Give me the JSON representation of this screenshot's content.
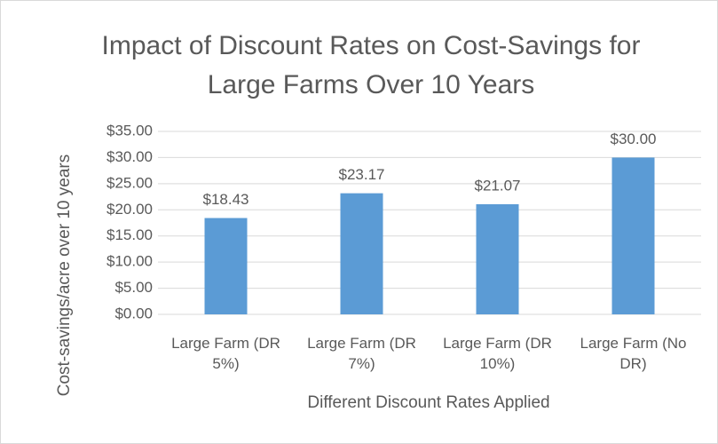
{
  "chart_data": {
    "type": "bar",
    "title": "Impact of Discount Rates on Cost-Savings for Large Farms Over 10 Years",
    "x_label": "Different Discount Rates Applied",
    "y_label": "Cost-savings/acre over 10 years",
    "categories": [
      "Large Farm (DR 5%)",
      "Large Farm (DR 7%)",
      "Large Farm (DR 10%)",
      "Large Farm (No DR)"
    ],
    "values": [
      18.43,
      23.17,
      21.07,
      30
    ],
    "value_labels": [
      "$18.43",
      "$23.17",
      "$21.07",
      "$30.00"
    ],
    "color": "#5b9bd5",
    "ylim": [
      0,
      35
    ],
    "yticks": [
      {
        "value": 0,
        "label": "$0.00"
      },
      {
        "value": 5,
        "label": "$5.00"
      },
      {
        "value": 10,
        "label": "$10.00"
      },
      {
        "value": 15,
        "label": "$15.00"
      },
      {
        "value": 20,
        "label": "$20.00"
      },
      {
        "value": 25,
        "label": "$25.00"
      },
      {
        "value": 30,
        "label": "$30.00"
      },
      {
        "value": 35,
        "label": "$35.00"
      }
    ],
    "grid": true
  }
}
